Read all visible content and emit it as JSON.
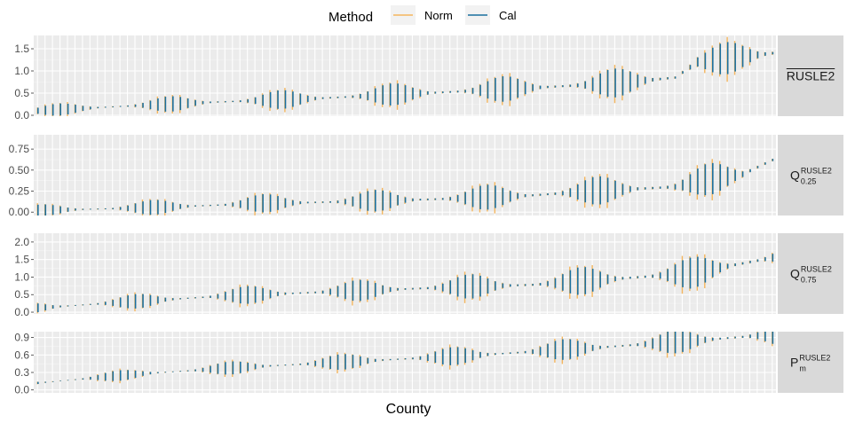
{
  "chart_data": {
    "type": "range",
    "xlabel": "County",
    "legend": {
      "title": "Method",
      "position": "top",
      "entries": [
        {
          "name": "Norm",
          "color": "#F5B65E"
        },
        {
          "name": "Cal",
          "color": "#1B6F9E"
        }
      ]
    },
    "n_counties": 99,
    "grid": true,
    "panels": [
      {
        "strip": {
          "main": "RUSLE2",
          "overline": true,
          "sup": "",
          "sub": ""
        },
        "ylim": [
          -0.02,
          1.8
        ],
        "yticks": [
          0.0,
          0.5,
          1.0,
          1.5
        ],
        "ytick_labels": [
          "0.0",
          "0.5",
          "1.0",
          "1.5"
        ],
        "x": [
          1,
          12,
          25,
          37,
          49,
          59,
          67,
          78,
          86,
          89,
          99
        ],
        "y": [
          0.1,
          0.2,
          0.3,
          0.37,
          0.47,
          0.55,
          0.62,
          0.72,
          0.85,
          1.2,
          1.4
        ]
      },
      {
        "strip": {
          "main": "Q",
          "overline": false,
          "sup": "RUSLE2",
          "sub": "0.25"
        },
        "ylim": [
          -0.04,
          0.92
        ],
        "yticks": [
          0.0,
          0.25,
          0.5,
          0.75
        ],
        "ytick_labels": [
          "0.00",
          "0.25",
          "0.50",
          "0.75"
        ],
        "x": [
          1,
          15,
          30,
          45,
          60,
          67,
          75,
          86,
          90,
          95,
          99
        ],
        "y": [
          0.02,
          0.05,
          0.1,
          0.13,
          0.17,
          0.2,
          0.25,
          0.3,
          0.38,
          0.45,
          0.62
        ]
      },
      {
        "strip": {
          "main": "Q",
          "overline": false,
          "sup": "RUSLE2",
          "sub": "0.75"
        },
        "ylim": [
          -0.05,
          2.25
        ],
        "yticks": [
          0.0,
          0.5,
          1.0,
          1.5,
          2.0
        ],
        "ytick_labels": [
          "0.0",
          "0.5",
          "1.0",
          "1.5",
          "2.0"
        ],
        "x": [
          1,
          10,
          25,
          40,
          55,
          67,
          78,
          88,
          94,
          99
        ],
        "y": [
          0.12,
          0.25,
          0.45,
          0.58,
          0.7,
          0.78,
          0.95,
          1.1,
          1.35,
          1.55
        ]
      },
      {
        "strip": {
          "main": "P",
          "overline": false,
          "sup": "RUSLE2",
          "sub": "m"
        },
        "ylim": [
          -0.05,
          1.0
        ],
        "yticks": [
          0.0,
          0.3,
          0.6,
          0.9
        ],
        "ytick_labels": [
          "0.0",
          "0.3",
          "0.6",
          "0.9"
        ],
        "x": [
          1,
          15,
          30,
          45,
          60,
          75,
          90,
          99
        ],
        "y": [
          0.12,
          0.28,
          0.4,
          0.5,
          0.6,
          0.72,
          0.86,
          0.95
        ]
      }
    ]
  }
}
